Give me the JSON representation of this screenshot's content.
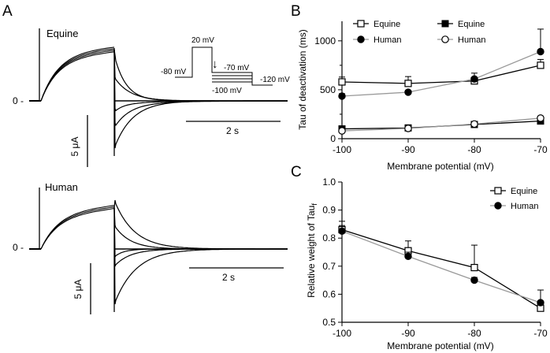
{
  "panel_letters": {
    "a": "A",
    "b": "B",
    "c": "C"
  },
  "panel_a": {
    "top_label": "Equine",
    "bottom_label": "Human",
    "zero_label": "0 -",
    "current_scale": "5 μA",
    "time_scale": "2 s",
    "protocol": {
      "hold": "-80 mV",
      "step": "20 mV",
      "top": "-70 mV",
      "bottom": "-100 mV",
      "lowest": "-120 mV",
      "arrow": "↓"
    }
  },
  "chart_data": [
    {
      "id": "B",
      "type": "line",
      "xlabel": "Membrane potential (mV)",
      "ylabel": "Tau of deactivation (ms)",
      "x": [
        -100,
        -90,
        -80,
        -70
      ],
      "xlim": [
        -100,
        -70
      ],
      "ylim": [
        0,
        1200
      ],
      "yticks": [
        0,
        500,
        1000
      ],
      "legend": [
        "Equine",
        "Human",
        "Equine",
        "Human"
      ],
      "legend_placement": "top",
      "series": [
        {
          "name": "Equine",
          "marker": "open-square",
          "line_color": "#000000",
          "values": [
            580,
            565,
            590,
            750
          ],
          "err": [
            50,
            70,
            30,
            60
          ]
        },
        {
          "name": "Human",
          "marker": "filled-circle",
          "line_color": "#999999",
          "values": [
            435,
            475,
            610,
            890
          ],
          "err": [
            25,
            20,
            60,
            230
          ]
        },
        {
          "name": "Equine",
          "marker": "filled-square",
          "line_color": "#000000",
          "values": [
            100,
            110,
            145,
            180
          ],
          "err": [
            10,
            10,
            12,
            15
          ]
        },
        {
          "name": "Human",
          "marker": "open-circle",
          "line_color": "#999999",
          "values": [
            80,
            105,
            150,
            210
          ],
          "err": [
            8,
            10,
            12,
            20
          ]
        }
      ]
    },
    {
      "id": "C",
      "type": "line",
      "xlabel": "Membrane potential (mV)",
      "ylabel": "Relative weight of Tau",
      "ylabel_sub": "f",
      "x": [
        -100,
        -90,
        -80,
        -70
      ],
      "xlim": [
        -100,
        -70
      ],
      "ylim": [
        0.5,
        1.0
      ],
      "yticks": [
        "0.5",
        "0.6",
        "0.7",
        "0.8",
        "0.9",
        "1.0"
      ],
      "legend": [
        "Equine",
        "Human"
      ],
      "legend_placement": "top-right",
      "series": [
        {
          "name": "Equine",
          "marker": "open-square",
          "line_color": "#000000",
          "values": [
            0.83,
            0.755,
            0.695,
            0.55
          ],
          "err": [
            0.03,
            0.035,
            0.08,
            0.02
          ]
        },
        {
          "name": "Human",
          "marker": "filled-circle",
          "line_color": "#999999",
          "values": [
            0.825,
            0.735,
            0.65,
            0.57
          ],
          "err": [
            0.02,
            0.015,
            0.01,
            0.045
          ]
        }
      ]
    }
  ]
}
